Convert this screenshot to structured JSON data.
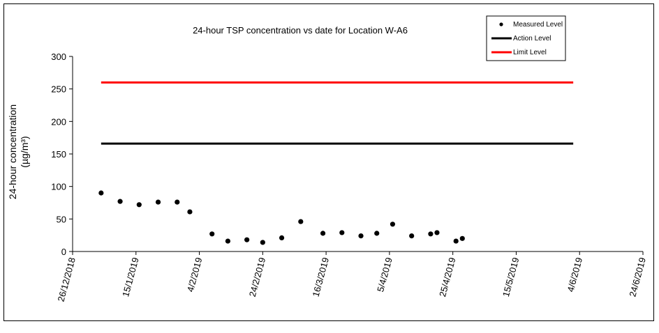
{
  "chart_data": {
    "type": "scatter",
    "title": "24-hour TSP concentration vs date for Location W-A6",
    "xlabel": "",
    "ylabel": "24-hour concentration",
    "ylabel_unit": "(µg/m³)",
    "ylim": [
      0,
      300
    ],
    "yticks": [
      0,
      50,
      100,
      150,
      200,
      250,
      300
    ],
    "xlim": [
      "2018-12-26",
      "2019-06-24"
    ],
    "xtick_values": [
      "2018-12-26",
      "2019-01-15",
      "2019-02-04",
      "2019-02-24",
      "2019-03-16",
      "2019-04-05",
      "2019-04-25",
      "2019-05-15",
      "2019-06-04",
      "2019-06-24"
    ],
    "xtick_labels": [
      "26/12/2018",
      "15/1/2019",
      "4/2/2019",
      "24/2/2019",
      "16/3/2019",
      "5/4/2019",
      "25/4/2019",
      "15/5/2019",
      "4/6/2019",
      "24/6/2019"
    ],
    "grid": false,
    "legend_position": "top-right",
    "series": [
      {
        "name": "Measured Level",
        "kind": "marker",
        "color": "#000000",
        "points": [
          {
            "x": "2019-01-04",
            "y": 90
          },
          {
            "x": "2019-01-10",
            "y": 77
          },
          {
            "x": "2019-01-16",
            "y": 72
          },
          {
            "x": "2019-01-22",
            "y": 76
          },
          {
            "x": "2019-01-28",
            "y": 76
          },
          {
            "x": "2019-02-01",
            "y": 61
          },
          {
            "x": "2019-02-08",
            "y": 27
          },
          {
            "x": "2019-02-13",
            "y": 16
          },
          {
            "x": "2019-02-19",
            "y": 18
          },
          {
            "x": "2019-02-24",
            "y": 14
          },
          {
            "x": "2019-03-02",
            "y": 21
          },
          {
            "x": "2019-03-08",
            "y": 46
          },
          {
            "x": "2019-03-15",
            "y": 28
          },
          {
            "x": "2019-03-21",
            "y": 29
          },
          {
            "x": "2019-03-27",
            "y": 24
          },
          {
            "x": "2019-04-01",
            "y": 28
          },
          {
            "x": "2019-04-06",
            "y": 42
          },
          {
            "x": "2019-04-12",
            "y": 24
          },
          {
            "x": "2019-04-18",
            "y": 27
          },
          {
            "x": "2019-04-20",
            "y": 29
          },
          {
            "x": "2019-04-26",
            "y": 16
          },
          {
            "x": "2019-04-28",
            "y": 20
          }
        ]
      },
      {
        "name": "Action Level",
        "kind": "line",
        "color": "#000000",
        "points": [
          {
            "x": "2019-01-04",
            "y": 166
          },
          {
            "x": "2019-06-02",
            "y": 166
          }
        ]
      },
      {
        "name": "Limit Level",
        "kind": "line",
        "color": "#ff0000",
        "points": [
          {
            "x": "2019-01-04",
            "y": 260
          },
          {
            "x": "2019-06-02",
            "y": 260
          }
        ]
      }
    ]
  }
}
